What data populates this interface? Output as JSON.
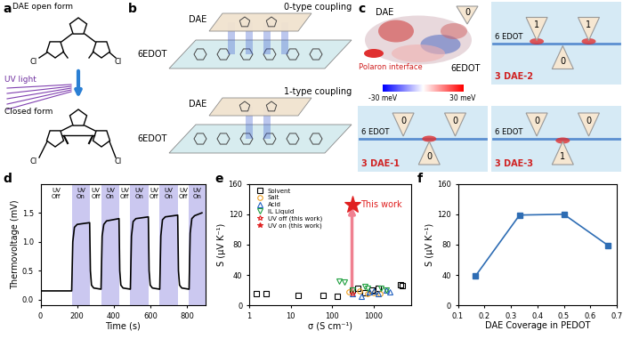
{
  "panel_labels": [
    "a",
    "b",
    "c",
    "d",
    "e",
    "f"
  ],
  "diagram_a": {
    "open_form": "DAE open form",
    "light": "UV light",
    "closed_form": "Closed form",
    "atom": "Cl"
  },
  "diagram_b": {
    "layers": [
      {
        "coupling": "0-type coupling",
        "top": "DAE",
        "bottom": "6EDOT"
      },
      {
        "coupling": "1-type coupling",
        "top": "DAE",
        "bottom": "6EDOT"
      }
    ]
  },
  "diagram_c": {
    "surface": {
      "molecule_top": "DAE",
      "molecule_bottom": "6EDOT",
      "interface": "Polaron interface",
      "site": "0",
      "colorbar": {
        "range": [
          -30,
          30
        ],
        "ticks": [
          {
            "value": -30,
            "label": "-30 meV"
          },
          {
            "value": 30,
            "label": "30 meV"
          }
        ]
      }
    },
    "configurations": [
      {
        "label": "3 DAE-2",
        "chain": "6 EDOT",
        "top_left": "1",
        "top_right": "1",
        "bottom": "0"
      },
      {
        "label": "3 DAE-1",
        "chain": "6 EDOT",
        "top_left": "0",
        "top_right": "0",
        "bottom": "0"
      },
      {
        "label": "3 DAE-3",
        "chain": "6 EDOT",
        "top_left": "0",
        "top_right": "0",
        "bottom": "1"
      }
    ]
  },
  "chart_data": [
    {
      "type": "line",
      "xlabel": "Time (s)",
      "ylabel": "Thermovoltage (mV)",
      "x": [
        0,
        170,
        176,
        185,
        200,
        268,
        272,
        278,
        290,
        330,
        336,
        345,
        360,
        428,
        432,
        438,
        450,
        490,
        496,
        505,
        520,
        588,
        592,
        598,
        610,
        650,
        656,
        665,
        680,
        748,
        752,
        758,
        770,
        810,
        816,
        825,
        840,
        880
      ],
      "values": [
        0.15,
        0.15,
        1.0,
        1.25,
        1.3,
        1.33,
        0.5,
        0.25,
        0.2,
        0.18,
        1.1,
        1.3,
        1.36,
        1.4,
        0.5,
        0.25,
        0.2,
        0.18,
        1.1,
        1.35,
        1.4,
        1.43,
        0.5,
        0.25,
        0.2,
        0.18,
        1.1,
        1.38,
        1.43,
        1.46,
        0.5,
        0.25,
        0.2,
        0.18,
        1.15,
        1.4,
        1.45,
        1.5
      ],
      "color": "#000000",
      "xlim": [
        0,
        900
      ],
      "xticks": [
        0,
        200,
        400,
        600,
        800
      ],
      "ylim": [
        -0.1,
        2.0
      ],
      "yticks": [
        {
          "value": 0,
          "label": "0.0"
        },
        0.5,
        {
          "value": 1,
          "label": "1.0"
        },
        1.5
      ],
      "bands": [
        {
          "label": "UV Off",
          "from": 0,
          "to": 170,
          "color": "#ffffff"
        },
        {
          "label": "UV On",
          "from": 170,
          "to": 270,
          "color": "#cbc8f0"
        },
        {
          "label": "UV Off",
          "from": 270,
          "to": 330,
          "color": "#ffffff"
        },
        {
          "label": "UV On",
          "from": 330,
          "to": 430,
          "color": "#cbc8f0"
        },
        {
          "label": "UV Off",
          "from": 430,
          "to": 490,
          "color": "#ffffff"
        },
        {
          "label": "UV On",
          "from": 490,
          "to": 590,
          "color": "#cbc8f0"
        },
        {
          "label": "UV Off",
          "from": 590,
          "to": 650,
          "color": "#ffffff"
        },
        {
          "label": "UV On",
          "from": 650,
          "to": 750,
          "color": "#cbc8f0"
        },
        {
          "label": "UV Off",
          "from": 750,
          "to": 810,
          "color": "#ffffff"
        },
        {
          "label": "UV On",
          "from": 810,
          "to": 900,
          "color": "#cbc8f0"
        }
      ]
    },
    {
      "type": "scatter",
      "xlabel": "σ (S cm⁻¹)",
      "ylabel": "S (μV K⁻¹)",
      "log": "x",
      "xlim": [
        1,
        8000
      ],
      "xticks": [
        1,
        10,
        100,
        1000
      ],
      "ylim": [
        0,
        160
      ],
      "yticks": [
        0,
        40,
        80,
        120,
        160
      ],
      "legend": "upper left",
      "annotation": "This work",
      "series": [
        {
          "name": "Solvent",
          "color": "#000000",
          "marker": "square",
          "x": [
            1.5,
            2.5,
            15,
            60,
            130,
            300,
            420,
            600,
            900,
            1300,
            4500,
            5000
          ],
          "values": [
            15,
            15,
            13,
            13,
            12,
            20,
            22,
            17,
            20,
            22,
            27,
            26
          ]
        },
        {
          "name": "Salt",
          "color": "#f0a020",
          "marker": "circle",
          "x": [
            250,
            450,
            700,
            1000,
            1400
          ],
          "values": [
            18,
            19,
            16,
            17,
            15
          ]
        },
        {
          "name": "Acid",
          "color": "#2060c0",
          "marker": "triangle_up",
          "x": [
            300,
            500,
            800,
            1000,
            1300,
            2000,
            2500
          ],
          "values": [
            15,
            12,
            18,
            19,
            16,
            20,
            18
          ]
        },
        {
          "name": "IL Liquid",
          "color": "#20a040",
          "marker": "triangle_down",
          "x": [
            150,
            200,
            300,
            600,
            700,
            1500,
            2000
          ],
          "values": [
            32,
            31,
            20,
            25,
            22,
            22,
            20
          ]
        },
        {
          "name": "UV off (this work)",
          "color": "#e02020",
          "marker": "star",
          "x": [
            300
          ],
          "values": [
            16
          ]
        },
        {
          "name": "UV on (this work)",
          "color": "#e02020",
          "marker": "filled_star",
          "x": [
            300
          ],
          "values": [
            133
          ]
        }
      ]
    },
    {
      "type": "line",
      "xlabel": "DAE Coverage in PEDOT",
      "ylabel": "S (μV K⁻¹)",
      "x": [
        0.167,
        0.333,
        0.5,
        0.667
      ],
      "values": [
        39,
        119,
        120,
        79
      ],
      "color": "#2e6db4",
      "marker": "square",
      "xlim": [
        0.1,
        0.7
      ],
      "xticks": [
        0.1,
        0.2,
        0.3,
        0.4,
        0.5,
        0.6,
        0.7
      ],
      "ylim": [
        0,
        160
      ],
      "yticks": [
        0,
        40,
        80,
        120,
        160
      ]
    }
  ]
}
